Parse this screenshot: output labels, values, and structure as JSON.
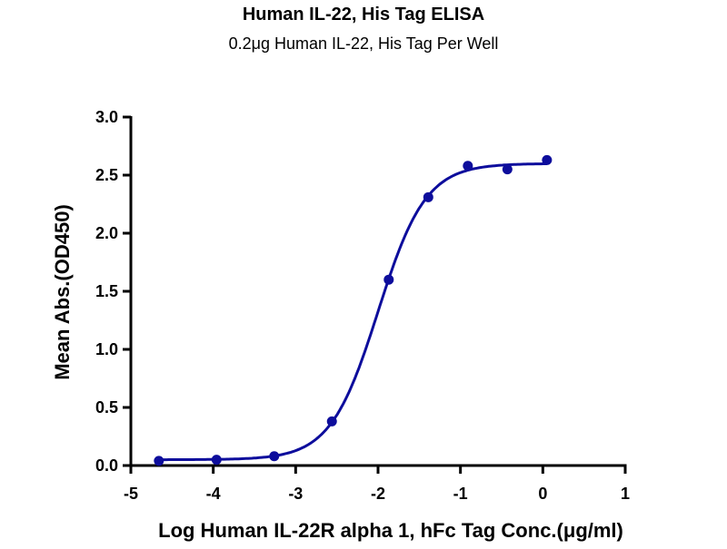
{
  "chart_data": {
    "type": "scatter",
    "title": "Human IL-22, His Tag ELISA",
    "subtitle": "0.2μg Human IL-22, His Tag Per Well",
    "xlabel": "Log Human IL-22R alpha 1, hFc Tag Conc.(μg/ml)",
    "ylabel": "Mean Abs.(OD450)",
    "xlim": [
      -5,
      1
    ],
    "ylim": [
      0,
      3.0
    ],
    "xticks": [
      "-5",
      "-4",
      "-3",
      "-2",
      "-1",
      "0",
      "1"
    ],
    "yticks": [
      "0.0",
      "0.5",
      "1.0",
      "1.5",
      "2.0",
      "2.5",
      "3.0"
    ],
    "grid": false,
    "color": "#0d0d9c",
    "x": [
      -4.66,
      -3.96,
      -3.26,
      -2.56,
      -1.87,
      -1.39,
      -0.91,
      -0.43,
      0.05
    ],
    "y": [
      0.04,
      0.05,
      0.08,
      0.38,
      1.6,
      2.31,
      2.58,
      2.55,
      2.63
    ],
    "fit": {
      "model": "4PL",
      "bottom": 0.05,
      "top": 2.6,
      "logEC50": -2.0,
      "hill": 1.5
    }
  }
}
